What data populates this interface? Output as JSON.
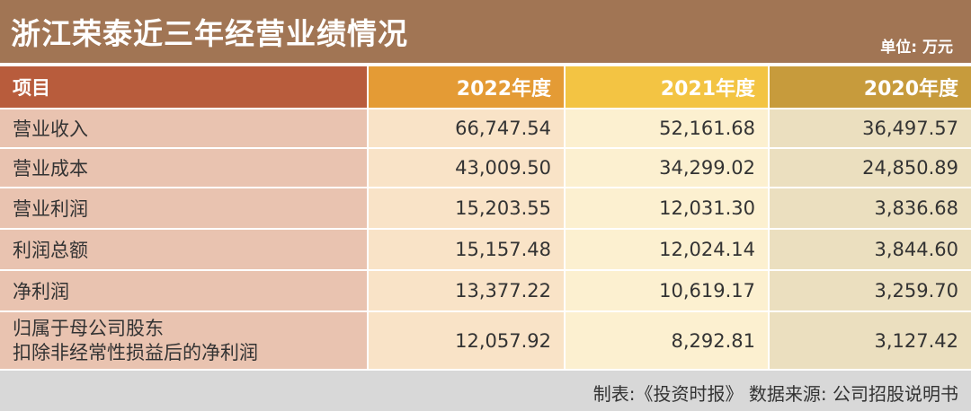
{
  "header": {
    "title": "浙江荣泰近三年经营业绩情况",
    "unit": "单位: 万元"
  },
  "table": {
    "columns": [
      "项目",
      "2022年度",
      "2021年度",
      "2020年度"
    ],
    "rows": [
      {
        "metric": "营业收入",
        "y2022": "66,747.54",
        "y2021": "52,161.68",
        "y2020": "36,497.57"
      },
      {
        "metric": "营业成本",
        "y2022": "43,009.50",
        "y2021": "34,299.02",
        "y2020": "24,850.89"
      },
      {
        "metric": "营业利润",
        "y2022": "15,203.55",
        "y2021": "12,031.30",
        "y2020": "3,836.68"
      },
      {
        "metric": "利润总额",
        "y2022": "15,157.48",
        "y2021": "12,024.14",
        "y2020": "3,844.60"
      },
      {
        "metric": "净利润",
        "y2022": "13,377.22",
        "y2021": "10,619.17",
        "y2020": "3,259.70"
      },
      {
        "metric_line1": "归属于母公司股东",
        "metric_line2": "扣除非经常性损益后的净利润",
        "y2022": "12,057.92",
        "y2021": "8,292.81",
        "y2020": "3,127.42"
      }
    ]
  },
  "footer": {
    "source": "制表:《投资时报》 数据来源: 公司招股说明书"
  },
  "colors": {
    "header_bg": "#a17554",
    "col_header_item": "#b85c3c",
    "col_header_2022": "#e49b35",
    "col_header_2021": "#f3c443",
    "col_header_2020": "#c79b3c"
  }
}
